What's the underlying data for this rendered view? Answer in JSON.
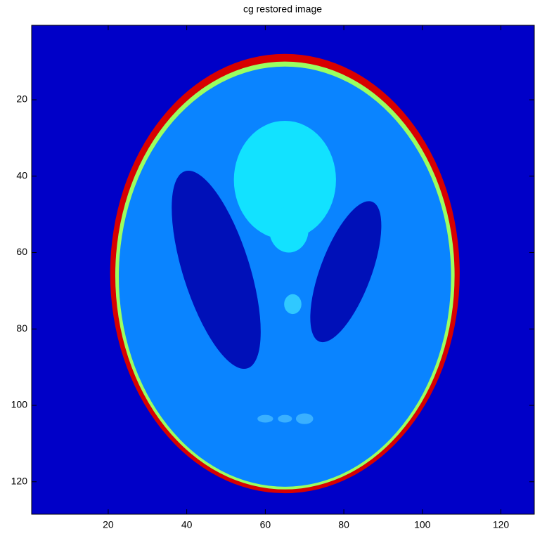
{
  "chart_data": {
    "type": "image",
    "title": "cg restored image",
    "xlim": [
      0.5,
      128.5
    ],
    "ylim": [
      0.5,
      128.5
    ],
    "y_reversed": true,
    "xticks": [
      20,
      40,
      60,
      80,
      100,
      120
    ],
    "yticks": [
      20,
      40,
      60,
      80,
      100,
      120
    ]
  }
}
